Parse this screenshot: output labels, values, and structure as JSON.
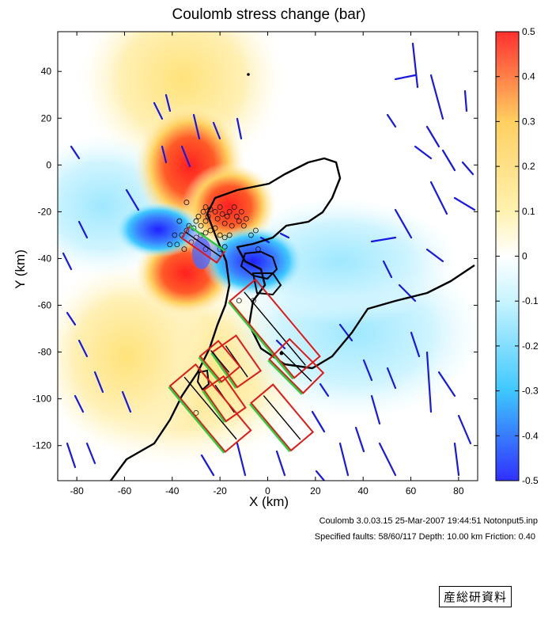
{
  "chart_data": {
    "type": "heatmap",
    "title": "Coulomb stress change (bar)",
    "xlabel": "X (km)",
    "ylabel": "Y (km)",
    "xlim": [
      -88,
      88
    ],
    "ylim": [
      -135,
      57
    ],
    "x_ticks": [
      -80,
      -60,
      -40,
      -20,
      0,
      20,
      40,
      60,
      80
    ],
    "y_ticks": [
      40,
      20,
      0,
      -20,
      -40,
      -60,
      -80,
      -100,
      -120
    ],
    "colorbar": {
      "min": -0.5,
      "max": 0.5,
      "ticks": [
        "0.5",
        "0.4",
        "0.3",
        "0.2",
        "0.1",
        "0",
        "-0.1",
        "-0.2",
        "-0.3",
        "-0.4",
        "-0.5"
      ]
    },
    "colormap": [
      "#3030ff",
      "#3ec8ff",
      "#c8f4ff",
      "#ffffff",
      "#fff2b0",
      "#ffd060",
      "#ff3030"
    ],
    "grid": false,
    "source_fault": {
      "x": -27,
      "y": -34,
      "strike_deg": 55,
      "length_km": 18
    },
    "specified_faults": [
      {
        "x": 3,
        "y": -70,
        "angle": 40,
        "len": 42,
        "width": 14
      },
      {
        "x": -13,
        "y": -84,
        "angle": 35,
        "len": 18,
        "width": 12
      },
      {
        "x": -20,
        "y": -84,
        "angle": 40,
        "len": 14,
        "width": 10
      },
      {
        "x": -18,
        "y": -100,
        "angle": 35,
        "len": 16,
        "width": 10
      },
      {
        "x": -24,
        "y": -104,
        "angle": 40,
        "len": 36,
        "width": 14
      },
      {
        "x": 6,
        "y": -108,
        "angle": 40,
        "len": 26,
        "width": 12
      },
      {
        "x": 12,
        "y": -86,
        "angle": 45,
        "len": 20,
        "width": 12
      }
    ],
    "aftershocks": [
      [
        -38,
        -34
      ],
      [
        -36,
        -30
      ],
      [
        -34,
        -28
      ],
      [
        -33,
        -26
      ],
      [
        -31,
        -27
      ],
      [
        -30,
        -24
      ],
      [
        -29,
        -22
      ],
      [
        -28,
        -26
      ],
      [
        -27,
        -20
      ],
      [
        -26,
        -24
      ],
      [
        -25,
        -22
      ],
      [
        -24,
        -19
      ],
      [
        -22,
        -20
      ],
      [
        -21,
        -23
      ],
      [
        -20,
        -18
      ],
      [
        -19,
        -21
      ],
      [
        -18,
        -25
      ],
      [
        -17,
        -22
      ],
      [
        -16,
        -20
      ],
      [
        -15,
        -26
      ],
      [
        -14,
        -18
      ],
      [
        -13,
        -22
      ],
      [
        -12,
        -24
      ],
      [
        -11,
        -20
      ],
      [
        -10,
        -26
      ],
      [
        -9,
        -23
      ],
      [
        -7,
        -30
      ],
      [
        -5,
        -28
      ],
      [
        -35,
        -36
      ],
      [
        -32,
        -33
      ],
      [
        -30,
        -31
      ],
      [
        -28,
        -30
      ],
      [
        -26,
        -29
      ],
      [
        -24,
        -28
      ],
      [
        -22,
        -27
      ],
      [
        -20,
        -30
      ],
      [
        -18,
        -31
      ],
      [
        -16,
        -30
      ],
      [
        -37,
        -24
      ],
      [
        -39,
        -30
      ],
      [
        -41,
        -34
      ],
      [
        -26,
        -18
      ],
      [
        -6,
        -58
      ],
      [
        -12,
        -58
      ],
      [
        -4,
        -36
      ],
      [
        -34,
        -16
      ],
      [
        -30,
        -106
      ],
      [
        -18,
        -35
      ],
      [
        -20,
        -36
      ],
      [
        -26,
        -36
      ]
    ]
  },
  "info": {
    "line1": "Coulomb 3.0.03.15 25-Mar-2007 19:44:51 Notonput5.inp",
    "line2": "Specified faults: 58/60/117  Depth: 10.00 km  Friction: 0.40"
  },
  "stamp": "産総研資料"
}
